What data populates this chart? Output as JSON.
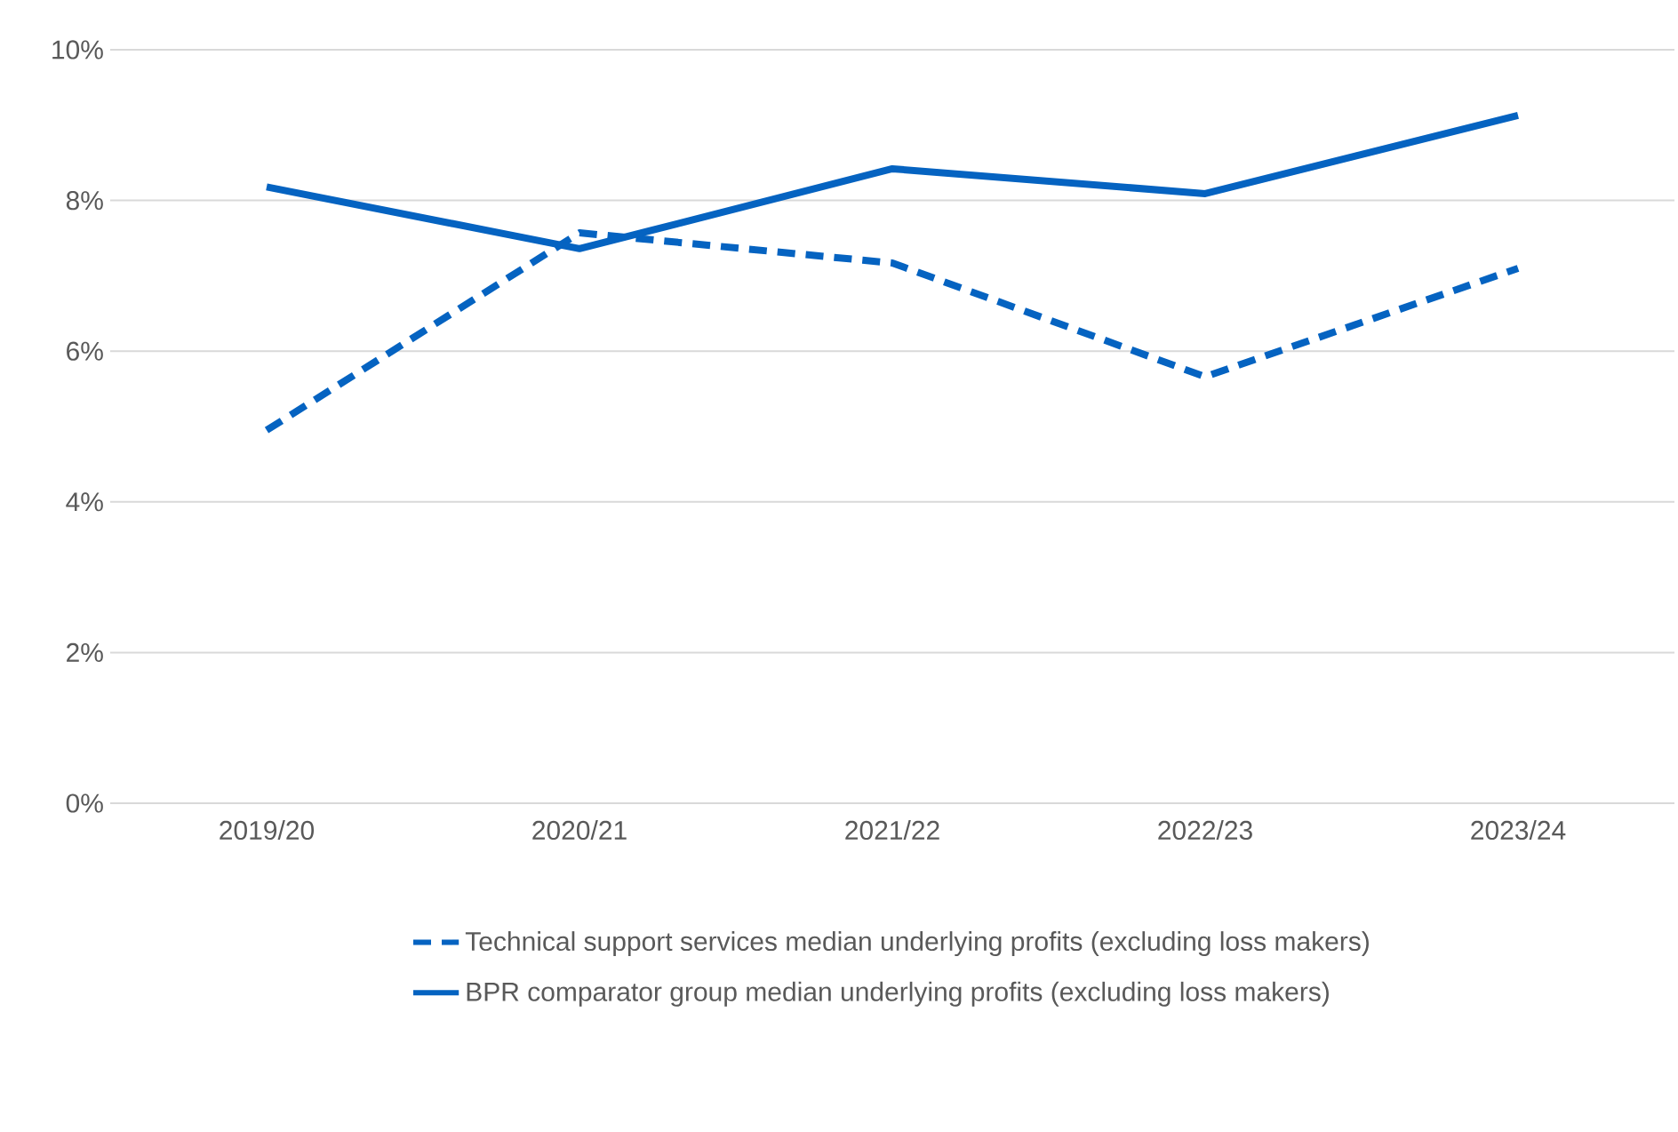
{
  "chart_data": {
    "type": "line",
    "categories": [
      "2019/20",
      "2020/21",
      "2021/22",
      "2022/23",
      "2023/24"
    ],
    "series": [
      {
        "name": "Technical support services median underlying profits (excluding loss makers)",
        "color": "#0563c1",
        "line_style": "dashed",
        "values": [
          4.95,
          7.57,
          7.17,
          5.66,
          7.1
        ]
      },
      {
        "name": "BPR comparator group median underlying profits (excluding loss makers)",
        "color": "#0563c1",
        "line_style": "solid",
        "values": [
          8.18,
          7.36,
          8.42,
          8.09,
          9.13
        ]
      }
    ],
    "ylim": [
      0,
      10
    ],
    "yticks": [
      {
        "value": 0,
        "label": "0%"
      },
      {
        "value": 2,
        "label": "2%"
      },
      {
        "value": 4,
        "label": "4%"
      },
      {
        "value": 6,
        "label": "6%"
      },
      {
        "value": 8,
        "label": "8%"
      },
      {
        "value": 10,
        "label": "10%"
      }
    ],
    "grid": "y",
    "legend": "bottom",
    "marker": "none"
  }
}
